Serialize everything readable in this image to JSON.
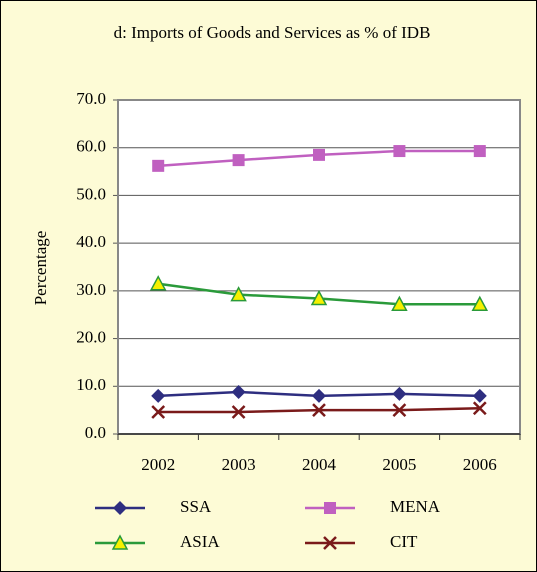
{
  "chart_data": {
    "type": "line",
    "title": "d: Imports of Goods and Services as % of IDB",
    "y_label": "Percentage",
    "categories": [
      "2002",
      "2003",
      "2004",
      "2005",
      "2006"
    ],
    "series": [
      {
        "name": "SSA",
        "color": "#2e2e80",
        "marker": "diamond",
        "values": [
          8.0,
          8.8,
          8.0,
          8.4,
          8.0
        ]
      },
      {
        "name": "MENA",
        "color": "#c060c0",
        "marker": "square",
        "values": [
          56.2,
          57.4,
          58.5,
          59.3,
          59.3
        ]
      },
      {
        "name": "ASIA",
        "color": "#2a9a3a",
        "marker": "triangle",
        "marker_fill": "#f5f000",
        "values": [
          31.5,
          29.2,
          28.4,
          27.2,
          27.2
        ]
      },
      {
        "name": "CIT",
        "color": "#7a1a1a",
        "marker": "x",
        "values": [
          4.6,
          4.6,
          5.0,
          5.0,
          5.4
        ]
      }
    ],
    "ylim": [
      0,
      70
    ],
    "yticks": [
      {
        "value": 0,
        "label": "0.0"
      },
      {
        "value": 10,
        "label": "10.0"
      },
      {
        "value": 20,
        "label": "20.0"
      },
      {
        "value": 30,
        "label": "30.0"
      },
      {
        "value": 40,
        "label": "40.0"
      },
      {
        "value": 50,
        "label": "50.0"
      },
      {
        "value": 60,
        "label": "60.0"
      },
      {
        "value": 70,
        "label": "70.0"
      }
    ],
    "grid": true,
    "legend": "bottom"
  }
}
